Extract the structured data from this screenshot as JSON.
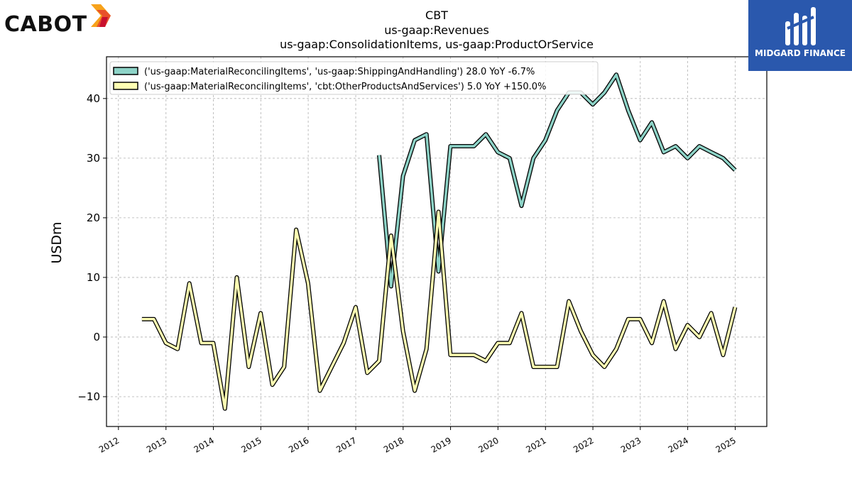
{
  "logos": {
    "left_text": "CABOT",
    "right_text": "MIDGARD FINANCE",
    "left_accent": "#e8502a",
    "right_bg": "#2a58ad"
  },
  "chart_data": {
    "type": "line",
    "title": "CBT",
    "subtitle_lines": [
      "us-gaap:Revenues",
      "us-gaap:ConsolidationItems, us-gaap:ProductOrService"
    ],
    "xlabel": "",
    "ylabel": "USDm",
    "xlim": [
      "2011-10-01",
      "2025-09-01"
    ],
    "ylim": [
      -15,
      47
    ],
    "x_ticks": [
      "2012",
      "2013",
      "2014",
      "2015",
      "2016",
      "2017",
      "2018",
      "2019",
      "2020",
      "2021",
      "2022",
      "2023",
      "2024",
      "2025"
    ],
    "y_ticks": [
      -10,
      0,
      10,
      20,
      30,
      40
    ],
    "y_tick_labels": [
      "−10",
      "0",
      "10",
      "20",
      "30",
      "40"
    ],
    "grid": true,
    "legend_position": "top-left",
    "series": [
      {
        "name": "('us-gaap:MaterialReconcilingItems', 'us-gaap:ShippingAndHandling') 28.0 YoY -6.7%",
        "color": "#8dd3c7",
        "points": [
          [
            "2017-06-30",
            30.5
          ],
          [
            "2017-09-30",
            8.5
          ],
          [
            "2017-12-31",
            27.0
          ],
          [
            "2018-03-31",
            33.0
          ],
          [
            "2018-06-30",
            34.0
          ],
          [
            "2018-09-30",
            11.0
          ],
          [
            "2018-12-31",
            32.0
          ],
          [
            "2019-03-31",
            32.0
          ],
          [
            "2019-06-30",
            32.0
          ],
          [
            "2019-09-30",
            34.0
          ],
          [
            "2019-12-31",
            31.0
          ],
          [
            "2020-03-31",
            30.0
          ],
          [
            "2020-06-30",
            22.0
          ],
          [
            "2020-09-30",
            30.0
          ],
          [
            "2020-12-31",
            33.0
          ],
          [
            "2021-03-31",
            38.0
          ],
          [
            "2021-06-30",
            41.0
          ],
          [
            "2021-09-30",
            41.0
          ],
          [
            "2021-12-31",
            39.0
          ],
          [
            "2022-03-31",
            41.0
          ],
          [
            "2022-06-30",
            44.0
          ],
          [
            "2022-09-30",
            38.0
          ],
          [
            "2022-12-31",
            33.0
          ],
          [
            "2023-03-31",
            36.0
          ],
          [
            "2023-06-30",
            31.0
          ],
          [
            "2023-09-30",
            32.0
          ],
          [
            "2023-12-31",
            30.0
          ],
          [
            "2024-03-31",
            32.0
          ],
          [
            "2024-06-30",
            31.0
          ],
          [
            "2024-09-30",
            30.0
          ],
          [
            "2024-12-31",
            28.0
          ]
        ]
      },
      {
        "name": "('us-gaap:MaterialReconcilingItems', 'cbt:OtherProductsAndServices') 5.0 YoY +150.0%",
        "color": "#ffffb3",
        "points": [
          [
            "2012-06-30",
            3.0
          ],
          [
            "2012-09-30",
            3.0
          ],
          [
            "2012-12-31",
            -1.0
          ],
          [
            "2013-03-31",
            -2.0
          ],
          [
            "2013-06-30",
            9.0
          ],
          [
            "2013-09-30",
            -1.0
          ],
          [
            "2013-12-31",
            -1.0
          ],
          [
            "2014-03-31",
            -12.0
          ],
          [
            "2014-06-30",
            10.0
          ],
          [
            "2014-09-30",
            -5.0
          ],
          [
            "2014-12-31",
            4.0
          ],
          [
            "2015-03-31",
            -8.0
          ],
          [
            "2015-06-30",
            -5.0
          ],
          [
            "2015-09-30",
            18.0
          ],
          [
            "2015-12-31",
            9.0
          ],
          [
            "2016-03-31",
            -9.0
          ],
          [
            "2016-06-30",
            -5.0
          ],
          [
            "2016-09-30",
            -1.0
          ],
          [
            "2016-12-31",
            5.0
          ],
          [
            "2017-03-31",
            -6.0
          ],
          [
            "2017-06-30",
            -4.0
          ],
          [
            "2017-09-30",
            17.0
          ],
          [
            "2017-12-31",
            1.0
          ],
          [
            "2018-03-31",
            -9.0
          ],
          [
            "2018-06-30",
            -2.0
          ],
          [
            "2018-09-30",
            21.0
          ],
          [
            "2018-12-31",
            -3.0
          ],
          [
            "2019-03-31",
            -3.0
          ],
          [
            "2019-06-30",
            -3.0
          ],
          [
            "2019-09-30",
            -4.0
          ],
          [
            "2019-12-31",
            -1.0
          ],
          [
            "2020-03-31",
            -1.0
          ],
          [
            "2020-06-30",
            4.0
          ],
          [
            "2020-09-30",
            -5.0
          ],
          [
            "2020-12-31",
            -5.0
          ],
          [
            "2021-03-31",
            -5.0
          ],
          [
            "2021-06-30",
            6.0
          ],
          [
            "2021-09-30",
            1.0
          ],
          [
            "2021-12-31",
            -3.0
          ],
          [
            "2022-03-31",
            -5.0
          ],
          [
            "2022-06-30",
            -2.0
          ],
          [
            "2022-09-30",
            3.0
          ],
          [
            "2022-12-31",
            3.0
          ],
          [
            "2023-03-31",
            -1.0
          ],
          [
            "2023-06-30",
            6.0
          ],
          [
            "2023-09-30",
            -2.0
          ],
          [
            "2023-12-31",
            2.0
          ],
          [
            "2024-03-31",
            0.0
          ],
          [
            "2024-06-30",
            4.0
          ],
          [
            "2024-09-30",
            -3.0
          ],
          [
            "2024-12-31",
            5.0
          ]
        ]
      }
    ]
  }
}
